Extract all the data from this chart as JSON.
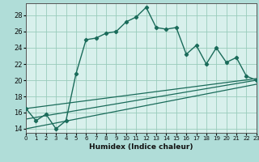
{
  "xlabel": "Humidex (Indice chaleur)",
  "xlim": [
    0,
    23
  ],
  "ylim": [
    13.5,
    29.5
  ],
  "xticks": [
    0,
    1,
    2,
    3,
    4,
    5,
    6,
    7,
    8,
    9,
    10,
    11,
    12,
    13,
    14,
    15,
    16,
    17,
    18,
    19,
    20,
    21,
    22,
    23
  ],
  "yticks": [
    14,
    16,
    18,
    20,
    22,
    24,
    26,
    28
  ],
  "bg_outer": "#b0ddd8",
  "bg_inner": "#d8f0ec",
  "grid_color": "#99ccbb",
  "line_color": "#1a6b5a",
  "curve_x": [
    0,
    1,
    2,
    3,
    4,
    5,
    6,
    7,
    8,
    9,
    10,
    11,
    12,
    13,
    14,
    15,
    16,
    17,
    18,
    19,
    20,
    21,
    22,
    23
  ],
  "curve_y": [
    16.5,
    15.0,
    15.8,
    14.0,
    15.0,
    20.8,
    25.0,
    25.2,
    25.8,
    26.0,
    27.2,
    27.8,
    29.0,
    26.5,
    26.3,
    26.5,
    23.2,
    24.3,
    22.0,
    24.0,
    22.2,
    22.8,
    20.5,
    20.0
  ],
  "line1_x": [
    0,
    23
  ],
  "line1_y": [
    16.5,
    20.2
  ],
  "line2_x": [
    0,
    23
  ],
  "line2_y": [
    15.2,
    20.0
  ],
  "line3_x": [
    0,
    23
  ],
  "line3_y": [
    14.0,
    19.5
  ]
}
